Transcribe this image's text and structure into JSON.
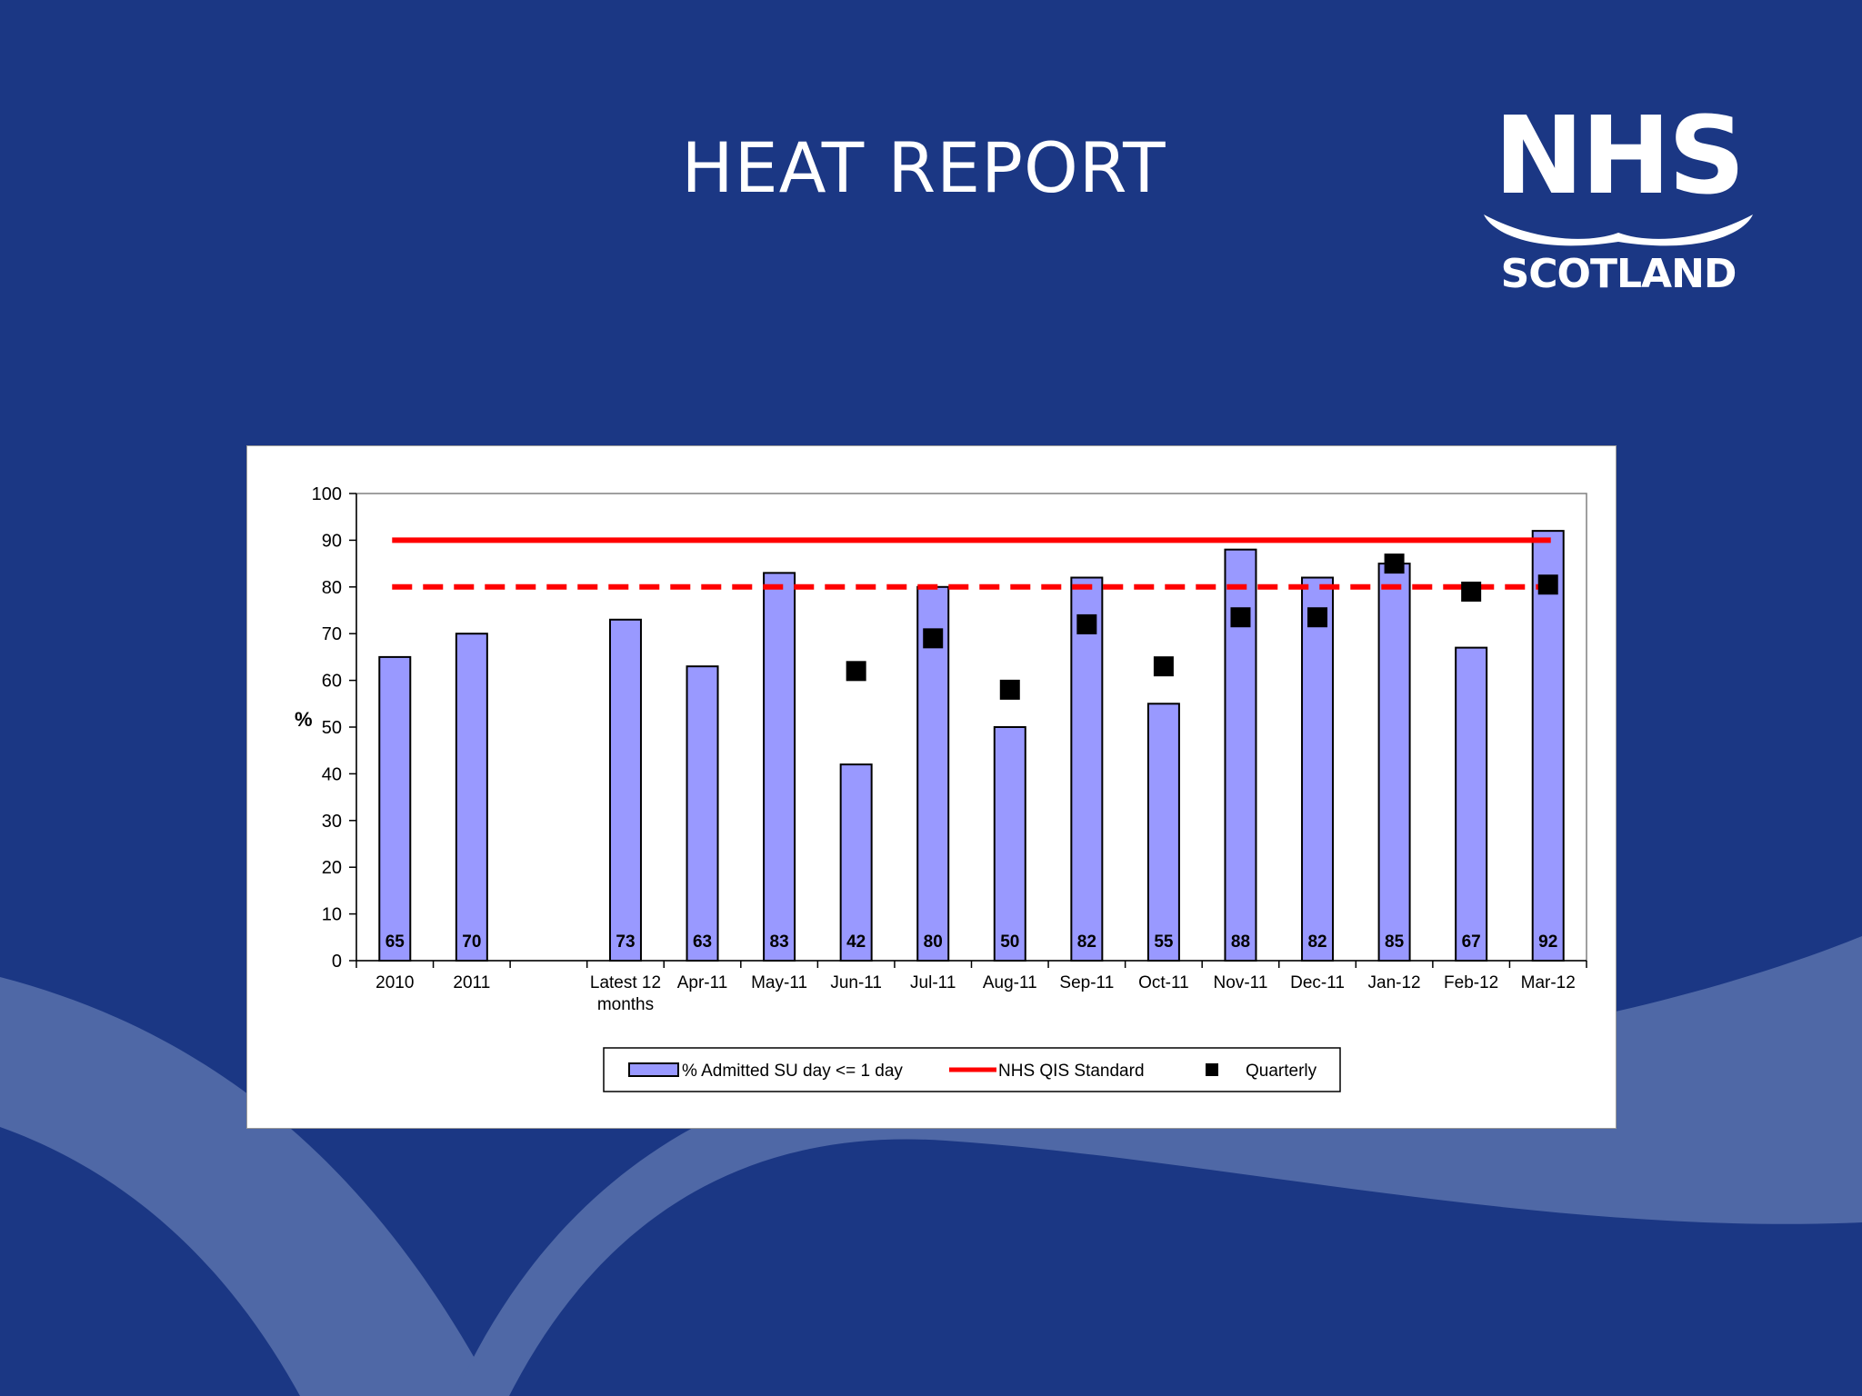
{
  "slide": {
    "title": "HEAT REPORT"
  },
  "logo": {
    "line1": "NHS",
    "line2": "SCOTLAND"
  },
  "colors": {
    "background": "#1b3784",
    "wave": "#4f68a6",
    "bar_fill": "#9999ff",
    "standard_line": "#ff0000",
    "quarterly_marker": "#000000"
  },
  "chart_data": {
    "type": "bar",
    "title": "",
    "xlabel": "",
    "ylabel": "%",
    "ylim": [
      0,
      100
    ],
    "yticks": [
      0,
      10,
      20,
      30,
      40,
      50,
      60,
      70,
      80,
      90,
      100
    ],
    "categories": [
      "2010",
      "2011",
      "",
      "Latest 12 months",
      "Apr-11",
      "May-11",
      "Jun-11",
      "Jul-11",
      "Aug-11",
      "Sep-11",
      "Oct-11",
      "Nov-11",
      "Dec-11",
      "Jan-12",
      "Feb-12",
      "Mar-12"
    ],
    "category_lines": [
      [
        "2010"
      ],
      [
        "2011"
      ],
      [
        ""
      ],
      [
        "Latest 12",
        "months"
      ],
      [
        "Apr-11"
      ],
      [
        "May-11"
      ],
      [
        "Jun-11"
      ],
      [
        "Jul-11"
      ],
      [
        "Aug-11"
      ],
      [
        "Sep-11"
      ],
      [
        "Oct-11"
      ],
      [
        "Nov-11"
      ],
      [
        "Dec-11"
      ],
      [
        "Jan-12"
      ],
      [
        "Feb-12"
      ],
      [
        "Mar-12"
      ]
    ],
    "series": [
      {
        "name": "% Admitted SU day <= 1 day",
        "type": "bar",
        "values": [
          65,
          70,
          null,
          73,
          63,
          83,
          42,
          80,
          50,
          82,
          55,
          88,
          82,
          85,
          67,
          92
        ],
        "data_labels": [
          "65",
          "70",
          "",
          "73",
          "63",
          "83",
          "42",
          "80",
          "50",
          "82",
          "55",
          "88",
          "82",
          "85",
          "67",
          "92"
        ]
      },
      {
        "name": "NHS QIS Standard",
        "type": "line",
        "values": [
          90,
          90,
          90,
          90,
          90,
          90,
          90,
          90,
          90,
          90,
          90,
          90,
          90,
          90,
          90,
          90
        ]
      },
      {
        "name": "",
        "type": "dashed-line",
        "values": [
          80,
          80,
          80,
          80,
          80,
          80,
          80,
          80,
          80,
          80,
          80,
          80,
          80,
          80,
          80,
          80
        ]
      },
      {
        "name": "Quarterly",
        "type": "marker",
        "values": [
          null,
          null,
          null,
          null,
          null,
          null,
          62,
          69,
          58,
          72,
          63,
          73.5,
          73.5,
          85,
          79,
          80.5
        ]
      }
    ],
    "legend": {
      "position": "bottom",
      "entries": [
        "% Admitted SU day <= 1 day",
        "NHS QIS Standard",
        "Quarterly"
      ]
    },
    "grid": false
  }
}
